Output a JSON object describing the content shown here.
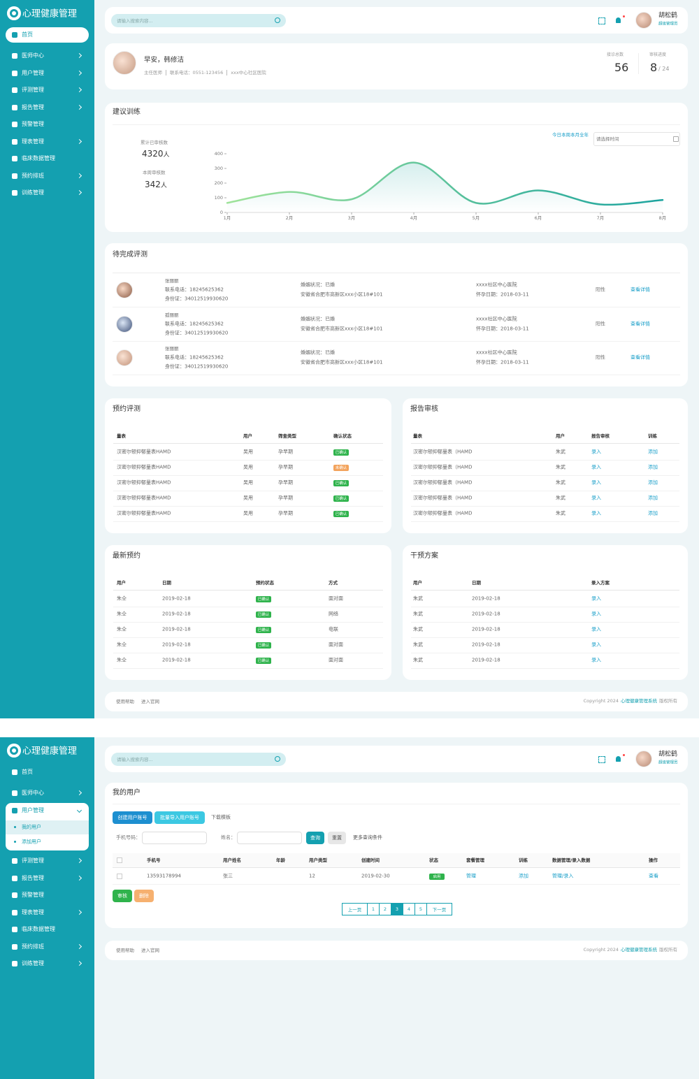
{
  "screen1": {
    "sidebar": {
      "logo": "心理健康管理",
      "menu": [
        {
          "label": "首页",
          "active": true
        },
        {
          "label": "医师中心",
          "arrow": true
        },
        {
          "label": "用户管理",
          "arrow": true
        },
        {
          "label": "评测管理",
          "arrow": true
        },
        {
          "label": "报告管理",
          "arrow": true
        },
        {
          "label": "预警管理"
        },
        {
          "label": "理表管理",
          "arrow": true
        },
        {
          "label": "临床数据管理"
        },
        {
          "label": "预约排班",
          "arrow": true
        },
        {
          "label": "训练管理",
          "arrow": true
        }
      ]
    },
    "header": {
      "search_placeholder": "请输入搜索内容...",
      "user_name": "胡松鹤",
      "user_role": "超级管理员"
    },
    "welcome": {
      "greeting": "早安，韩修洁",
      "details": [
        "主任医师",
        "联系电话：0551-123456",
        "xxx中心社区医院"
      ],
      "visits_label": "接诊总数",
      "visits": "56",
      "progress_label": "审核进度",
      "progress": "8",
      "progress_total": "/ 24"
    },
    "training": {
      "title": "建议训练",
      "total_label": "累计已审核数",
      "total": "4320",
      "total_unit": "人",
      "week_label": "本周审核数",
      "week": "342",
      "week_unit": "人",
      "range_options": "今日本周本月全年",
      "date_placeholder": "请选择时间",
      "chart": {
        "type": "line",
        "categories": [
          "1月",
          "2月",
          "3月",
          "4月",
          "5月",
          "6月",
          "7月",
          "8月"
        ],
        "values": [
          65,
          140,
          90,
          340,
          65,
          150,
          55,
          85
        ],
        "ylim": [
          0,
          400
        ],
        "yticks": [
          0,
          100,
          200,
          300,
          400
        ],
        "colors": [
          "#9fe39a",
          "#1aa39e"
        ]
      }
    },
    "pending": {
      "title": "待完成评测",
      "rows": [
        {
          "name": "张丽丽",
          "phone": "联系电话：18245625362",
          "id": "身份证：340125199306​20",
          "marriage": "婚姻状况：已婚",
          "address": "安徽省合肥市高新区xxx小区18#101",
          "hospital": "xxxx社区中心医院",
          "date": "怀孕日期：2018-03-11",
          "result": "阳性",
          "action": "查看详情"
        },
        {
          "name": "孤丽丽",
          "phone": "联系电话：18245625362",
          "id": "身份证：340125199306​20",
          "marriage": "婚姻状况：已婚",
          "address": "安徽省合肥市高新区xxx小区18#101",
          "hospital": "xxxx社区中心医院",
          "date": "怀孕日期：2018-03-11",
          "result": "阳性",
          "action": "查看详情"
        },
        {
          "name": "张丽丽",
          "phone": "联系电话：18245625362",
          "id": "身份证：340125199306​20",
          "marriage": "婚姻状况：已婚",
          "address": "安徽省合肥市高新区xxx小区18#101",
          "hospital": "xxxx社区中心医院",
          "date": "怀孕日期：2018-03-11",
          "result": "阳性",
          "action": "查看详情"
        }
      ]
    },
    "tables": [
      {
        "title": "预约评测",
        "columns": [
          "量表",
          "用户",
          "筛查类型",
          "确认状态"
        ],
        "rows": [
          [
            "汉密尔顿抑郁量表HAMD",
            "吴用",
            "孕早期",
            "已确认"
          ],
          [
            "汉密尔顿抑郁量表HAMD",
            "吴用",
            "孕早期",
            "未确认"
          ],
          [
            "汉密尔顿抑郁量表HAMD",
            "吴用",
            "孕早期",
            "已确认"
          ],
          [
            "汉密尔顿抑郁量表HAMD",
            "吴用",
            "孕早期",
            "已确认"
          ],
          [
            "汉密尔顿抑郁量表HAMD",
            "吴用",
            "孕早期",
            "已确认"
          ]
        ],
        "badge_colors": [
          "#2fb34c",
          "#f3a35c",
          "#2fb34c",
          "#2fb34c",
          "#2fb34c"
        ]
      },
      {
        "title": "报告审核",
        "columns": [
          "量表",
          "用户",
          "报告审核",
          "训练"
        ],
        "rows": [
          [
            "汉密尔顿抑郁量表（HAMD",
            "朱武",
            "录入",
            "添加"
          ],
          [
            "汉密尔顿抑郁量表（HAMD",
            "朱武",
            "录入",
            "添加"
          ],
          [
            "汉密尔顿抑郁量表（HAMD",
            "朱武",
            "录入",
            "添加"
          ],
          [
            "汉密尔顿抑郁量表（HAMD",
            "朱武",
            "录入",
            "添加"
          ],
          [
            "汉密尔顿抑郁量表（HAMD",
            "朱武",
            "录入",
            "添加"
          ]
        ]
      },
      {
        "title": "最新预约",
        "columns": [
          "用户",
          "日期",
          "预约状态",
          "方式"
        ],
        "rows": [
          [
            "朱仝",
            "2019-02-18",
            "已确认",
            "面对面"
          ],
          [
            "朱仝",
            "2019-02-18",
            "已确认",
            "网络"
          ],
          [
            "朱仝",
            "2019-02-18",
            "已确认",
            "电联"
          ],
          [
            "朱仝",
            "2019-02-18",
            "已确认",
            "面对面"
          ],
          [
            "朱仝",
            "2019-02-18",
            "已确认",
            "面对面"
          ]
        ],
        "badge_colors": [
          "#2fb34c",
          "#2fb34c",
          "#2fb34c",
          "#2fb34c",
          "#2fb34c"
        ]
      },
      {
        "title": "干预方案",
        "columns": [
          "用户",
          "日期",
          "录入方案"
        ],
        "rows": [
          [
            "朱武",
            "2019-02-18",
            "录入"
          ],
          [
            "朱武",
            "2019-02-18",
            "录入"
          ],
          [
            "朱武",
            "2019-02-18",
            "录入"
          ],
          [
            "朱武",
            "2019-02-18",
            "录入"
          ],
          [
            "朱武",
            "2019-02-18",
            "录入"
          ]
        ]
      }
    ],
    "footer": {
      "links": [
        "使用帮助",
        "进入官网"
      ],
      "copyright": "Copyright 2024",
      "system": "心理健康管理系统",
      "rights": "版权所有"
    }
  },
  "screen2": {
    "sidebar": {
      "logo": "心理健康管理",
      "menu": [
        {
          "label": "首页"
        },
        {
          "label": "医师中心",
          "arrow": true
        },
        {
          "label": "用户管理",
          "arrow": true,
          "expanded": true,
          "children": [
            {
              "label": "我的用户",
              "active": true
            },
            {
              "label": "添加用户"
            }
          ]
        },
        {
          "label": "评测管理",
          "arrow": true
        },
        {
          "label": "报告管理",
          "arrow": true
        },
        {
          "label": "预警管理"
        },
        {
          "label": "理表管理",
          "arrow": true
        },
        {
          "label": "临床数据管理"
        },
        {
          "label": "预约排班",
          "arrow": true
        },
        {
          "label": "训练管理",
          "arrow": true
        }
      ]
    },
    "header": {
      "search_placeholder": "请输入搜索内容...",
      "user_name": "胡松鹤",
      "user_role": "超级管理员"
    },
    "users": {
      "title": "我的用户",
      "actions": [
        "创建用户账号",
        "批量导入用户账号"
      ],
      "download": "下载模板",
      "filters": {
        "phone_label": "手机号码：",
        "name_label": "姓名：",
        "search": "查询",
        "reset": "重置",
        "more": "更多查询条件"
      },
      "columns": [
        "手机号",
        "用户姓名",
        "年龄",
        "用户类型",
        "创建时间",
        "状态",
        "套餐管理",
        "训练",
        "数据管理/录入数据",
        "操作"
      ],
      "rows": [
        [
          "13593178994",
          "张三",
          null,
          "12",
          "2019-02-30",
          "启用",
          "管理",
          "添加",
          "管理/录入",
          "查看"
        ]
      ],
      "badge_colors": [
        "#2fb34c"
      ],
      "bulk": [
        "审核",
        "删除"
      ],
      "pagination": {
        "prev": "上一页",
        "pages": [
          1,
          2,
          3,
          4,
          5
        ],
        "current": 3,
        "next": "下一页"
      }
    },
    "footer": {
      "links": [
        "使用帮助",
        "进入官网"
      ],
      "copyright": "Copyright 2024",
      "system": "心理健康管理系统",
      "rights": "版权所有"
    }
  }
}
